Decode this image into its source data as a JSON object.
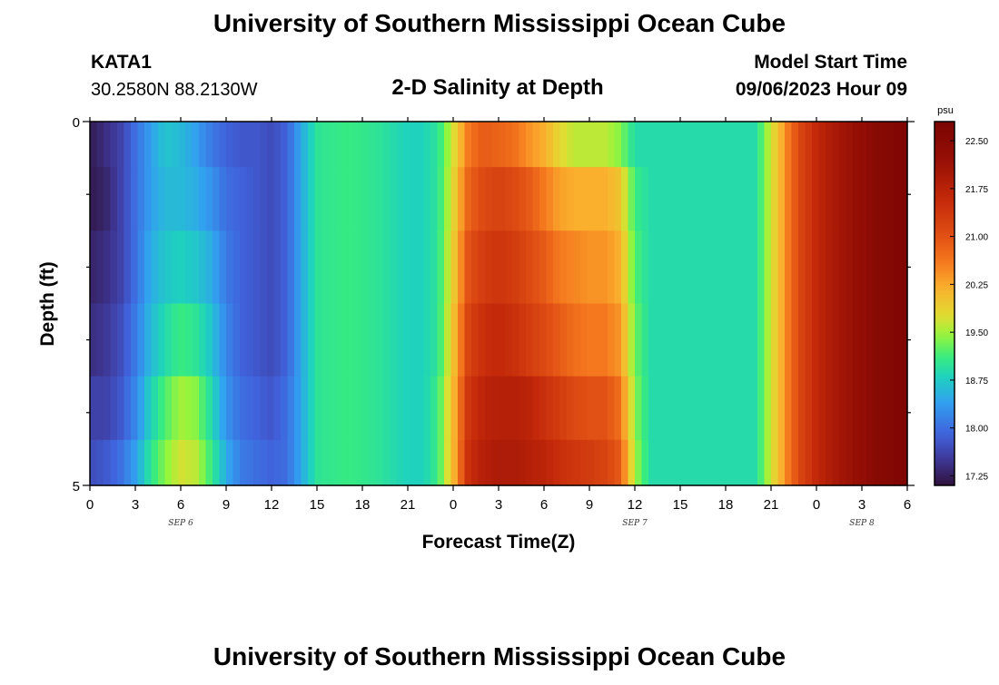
{
  "titles": {
    "main": "University of Southern Mississippi Ocean Cube",
    "main_bottom": "University of Southern Mississippi Ocean Cube",
    "station": "KATA1",
    "coordinates": "30.2580N  88.2130W",
    "plot": "2-D Salinity at Depth",
    "model_start_label": "Model Start Time",
    "model_start_value": "09/06/2023 Hour 09"
  },
  "chart_data": {
    "type": "heatmap",
    "title": "2-D Salinity at Depth",
    "xlabel": "Forecast Time(Z)",
    "ylabel": "Depth (ft)",
    "x_ticks": [
      "0",
      "3",
      "6",
      "9",
      "12",
      "15",
      "18",
      "21",
      "0",
      "3",
      "6",
      "9",
      "12",
      "15",
      "18",
      "21",
      "0",
      "3",
      "6"
    ],
    "x_dates": [
      {
        "label": "SEP 6",
        "tick_index": 2
      },
      {
        "label": "SEP 7",
        "tick_index": 12
      },
      {
        "label": "SEP 8",
        "tick_index": 17
      }
    ],
    "y_ticks": [
      "0",
      "5"
    ],
    "ylim": [
      0,
      5
    ],
    "x_range_hours": [
      0,
      54
    ],
    "depth_layers_ft": [
      0.25,
      1.0,
      2.0,
      3.0,
      4.0,
      4.75
    ],
    "colorbar": {
      "unit": "psu",
      "range": [
        17.1,
        22.8
      ],
      "ticks": [
        "22.50",
        "21.75",
        "21.00",
        "20.25",
        "19.50",
        "18.75",
        "18.00",
        "17.25"
      ]
    },
    "profile_hours": [
      0,
      1,
      2,
      3,
      4,
      5,
      6,
      7,
      8,
      9,
      10,
      11,
      12,
      13,
      14,
      15,
      17,
      19,
      21,
      22,
      23,
      24,
      25,
      26,
      27,
      28,
      29,
      30,
      31,
      32,
      33,
      34,
      35,
      36,
      37,
      38,
      39,
      40,
      42,
      44,
      45,
      45.5,
      46,
      47,
      48,
      49,
      50,
      51,
      52,
      53,
      54
    ],
    "profiles_psu": [
      [
        17.2,
        17.4,
        17.6,
        18.0,
        18.4,
        18.7,
        18.6,
        18.4,
        18.1,
        17.9,
        17.8,
        17.8,
        17.7,
        17.9,
        18.5,
        19.0,
        19.1,
        19.0,
        18.8,
        18.8,
        19.0,
        19.7,
        20.6,
        20.9,
        20.8,
        20.7,
        20.4,
        20.2,
        19.8,
        19.6,
        19.6,
        19.6,
        19.4,
        18.9,
        18.9,
        18.9,
        18.9,
        18.9,
        18.9,
        18.9,
        19.7,
        20.0,
        20.5,
        21.2,
        21.6,
        21.9,
        22.1,
        22.3,
        22.5,
        22.6,
        22.7
      ],
      [
        17.2,
        17.3,
        17.6,
        18.0,
        18.4,
        18.6,
        18.6,
        18.5,
        18.3,
        18.0,
        17.9,
        17.8,
        17.7,
        17.9,
        18.5,
        19.0,
        19.1,
        19.0,
        18.8,
        18.8,
        19.0,
        19.8,
        20.8,
        21.1,
        21.2,
        21.1,
        20.9,
        20.6,
        20.3,
        20.2,
        20.2,
        20.2,
        20.0,
        19.1,
        18.9,
        18.9,
        18.9,
        18.9,
        18.9,
        18.9,
        19.7,
        20.0,
        20.5,
        21.2,
        21.6,
        21.9,
        22.1,
        22.3,
        22.5,
        22.6,
        22.7
      ],
      [
        17.3,
        17.4,
        17.6,
        18.0,
        18.5,
        18.7,
        18.8,
        18.7,
        18.5,
        18.1,
        17.9,
        17.8,
        17.7,
        17.9,
        18.5,
        19.0,
        19.1,
        19.0,
        18.8,
        18.8,
        19.0,
        19.9,
        21.0,
        21.3,
        21.4,
        21.3,
        21.1,
        20.9,
        20.6,
        20.5,
        20.4,
        20.4,
        20.2,
        19.2,
        18.9,
        18.9,
        18.9,
        18.9,
        18.9,
        18.9,
        19.7,
        20.0,
        20.5,
        21.2,
        21.6,
        21.9,
        22.1,
        22.3,
        22.5,
        22.6,
        22.7
      ],
      [
        17.4,
        17.5,
        17.7,
        18.1,
        18.6,
        18.9,
        19.1,
        19.0,
        18.7,
        18.2,
        17.9,
        17.8,
        17.7,
        17.9,
        18.5,
        19.0,
        19.1,
        19.0,
        18.8,
        18.8,
        19.0,
        20.0,
        21.2,
        21.5,
        21.6,
        21.5,
        21.3,
        21.1,
        20.9,
        20.7,
        20.6,
        20.6,
        20.4,
        19.3,
        18.9,
        18.9,
        18.9,
        18.9,
        18.9,
        18.9,
        19.7,
        20.0,
        20.5,
        21.2,
        21.6,
        21.9,
        22.1,
        22.3,
        22.5,
        22.6,
        22.7
      ],
      [
        17.6,
        17.6,
        17.8,
        18.2,
        18.8,
        19.2,
        19.5,
        19.4,
        18.9,
        18.3,
        18.0,
        17.9,
        17.8,
        18.0,
        18.5,
        19.0,
        19.1,
        19.0,
        18.8,
        18.8,
        19.1,
        20.1,
        21.4,
        21.7,
        21.8,
        21.8,
        21.7,
        21.5,
        21.3,
        21.1,
        21.0,
        21.0,
        20.7,
        19.4,
        18.9,
        18.9,
        18.9,
        18.9,
        18.9,
        18.9,
        19.7,
        20.0,
        20.5,
        21.2,
        21.6,
        21.9,
        22.1,
        22.3,
        22.5,
        22.6,
        22.7
      ],
      [
        17.7,
        17.8,
        18.0,
        18.4,
        19.0,
        19.4,
        19.7,
        19.6,
        19.1,
        18.5,
        18.1,
        18.0,
        17.9,
        18.0,
        18.5,
        19.0,
        19.1,
        19.0,
        18.8,
        18.8,
        19.1,
        20.1,
        21.5,
        21.8,
        21.9,
        21.9,
        21.8,
        21.7,
        21.5,
        21.4,
        21.3,
        21.2,
        20.9,
        19.5,
        18.9,
        18.9,
        18.9,
        18.9,
        18.9,
        18.9,
        19.7,
        20.0,
        20.5,
        21.2,
        21.6,
        21.9,
        22.1,
        22.3,
        22.5,
        22.6,
        22.7
      ]
    ]
  }
}
